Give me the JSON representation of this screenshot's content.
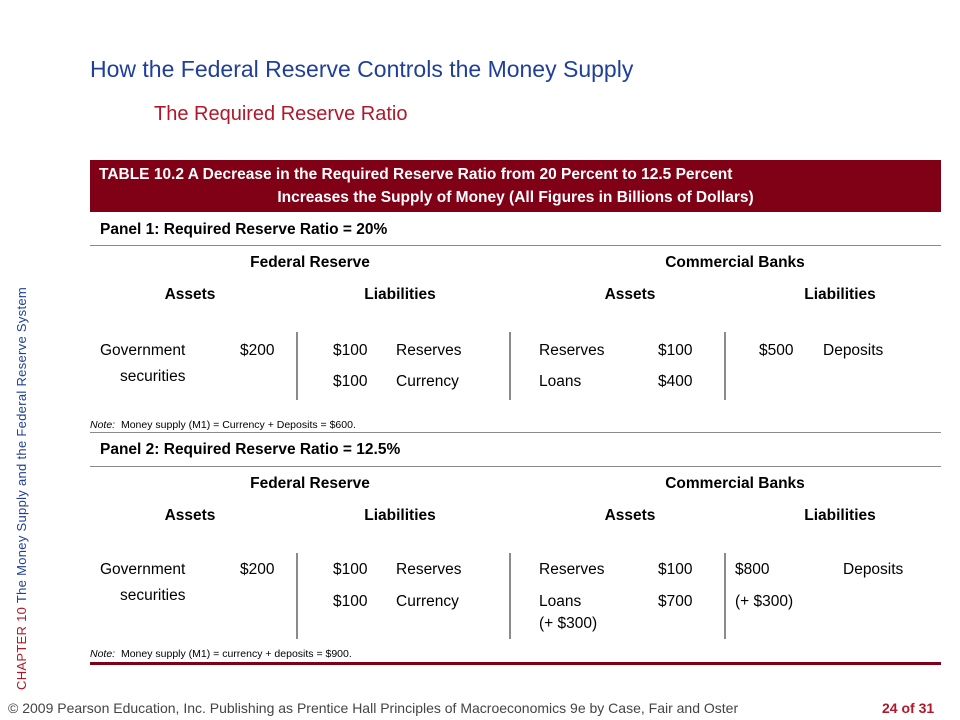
{
  "slide": {
    "title": "How the Federal Reserve Controls the Money Supply",
    "subtitle": "The Required Reserve Ratio",
    "side_chapter": "CHAPTER 10",
    "side_text": "The Money Supply and the Federal Reserve System",
    "footer": "© 2009 Pearson Education, Inc. Publishing as Prentice Hall   Principles of Macroeconomics 9e by Case, Fair and Oster",
    "page": "24 of 31"
  },
  "table": {
    "heading_line1": "TABLE 10.2  A Decrease in the Required Reserve Ratio from 20 Percent to 12.5 Percent",
    "heading_line2": "Increases the Supply of Money (All Figures in Billions of Dollars)",
    "panel1": {
      "label": "Panel 1:  Required Reserve Ratio = 20%",
      "fed_header": "Federal Reserve",
      "banks_header": "Commercial Banks",
      "fed_assets_header": "Assets",
      "fed_liab_header": "Liabilities",
      "bank_assets_header": "Assets",
      "bank_liab_header": "Liabilities",
      "fed_asset_label_1": "Government",
      "fed_asset_label_2": "securities",
      "fed_asset_value": "$200",
      "fed_liab_1_value": "$100",
      "fed_liab_1_label": "Reserves",
      "fed_liab_2_value": "$100",
      "fed_liab_2_label": "Currency",
      "bank_asset_1_label": "Reserves",
      "bank_asset_1_value": "$100",
      "bank_asset_2_label": "Loans",
      "bank_asset_2_value": "$400",
      "bank_liab_value": "$500",
      "bank_liab_label": "Deposits",
      "note_prefix": "Note:",
      "note_text": "Money supply (M1) = Currency + Deposits = $600."
    },
    "panel2": {
      "label": "Panel 2:  Required Reserve Ratio = 12.5%",
      "fed_header": "Federal Reserve",
      "banks_header": "Commercial Banks",
      "fed_assets_header": "Assets",
      "fed_liab_header": "Liabilities",
      "bank_assets_header": "Assets",
      "bank_liab_header": "Liabilities",
      "fed_asset_label_1": "Government",
      "fed_asset_label_2": "securities",
      "fed_asset_value": "$200",
      "fed_liab_1_value": "$100",
      "fed_liab_1_label": "Reserves",
      "fed_liab_2_value": "$100",
      "fed_liab_2_label": "Currency",
      "bank_asset_1_label": "Reserves",
      "bank_asset_1_value": "$100",
      "bank_asset_2_label": "Loans",
      "bank_asset_2_change": "(+ $300)",
      "bank_asset_2_value": "$700",
      "bank_liab_value": "$800",
      "bank_liab_label": "Deposits",
      "bank_liab_change": "(+ $300)",
      "note_prefix": "Note:",
      "note_text": "Money supply (M1) = currency + deposits = $900."
    }
  },
  "colors": {
    "title_blue": "#1f3f99",
    "accent_red": "#b0172a",
    "header_maroon": "#800016"
  }
}
